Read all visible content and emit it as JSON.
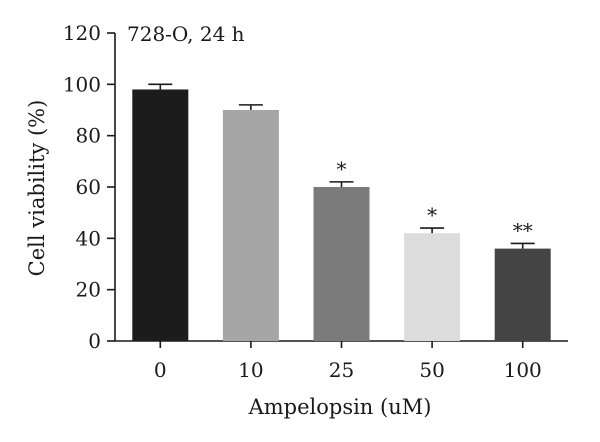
{
  "chart_data": {
    "type": "bar",
    "title": "728-O, 24 h",
    "xlabel": "Ampelopsin (uM)",
    "ylabel": "Cell viability (%)",
    "ylim": [
      0,
      120
    ],
    "yticks": [
      0,
      20,
      40,
      60,
      80,
      100,
      120
    ],
    "categories": [
      "0",
      "10",
      "25",
      "50",
      "100"
    ],
    "values": [
      98,
      90,
      60,
      42,
      36
    ],
    "errors": [
      2,
      2,
      2,
      2,
      2
    ],
    "significance": [
      "",
      "",
      "*",
      "*",
      "**"
    ],
    "colors": [
      "#1c1c1c",
      "#a6a6a6",
      "#7b7b7b",
      "#dcdcdc",
      "#444444"
    ],
    "grid": false,
    "legend": "none"
  }
}
